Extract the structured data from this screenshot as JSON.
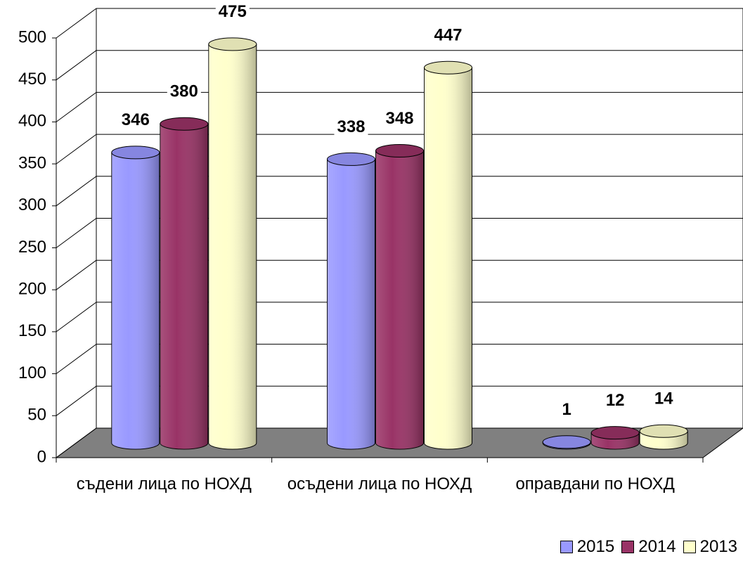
{
  "chart_data": {
    "type": "bar3d",
    "categories": [
      "съдени лица по НОХД",
      "осъдени лица по НОХД",
      "оправдани по НОХД"
    ],
    "series": [
      {
        "name": "2015",
        "color": "#9999ff",
        "values": [
          346,
          338,
          1
        ]
      },
      {
        "name": "2014",
        "color": "#993366",
        "values": [
          380,
          348,
          12
        ]
      },
      {
        "name": "2013",
        "color": "#ffffcc",
        "values": [
          475,
          447,
          14
        ]
      }
    ],
    "ylim": [
      0,
      500
    ],
    "yticks": [
      0,
      50,
      100,
      150,
      200,
      250,
      300,
      350,
      400,
      450,
      500
    ],
    "grid": true,
    "legend": "bottom-right"
  }
}
